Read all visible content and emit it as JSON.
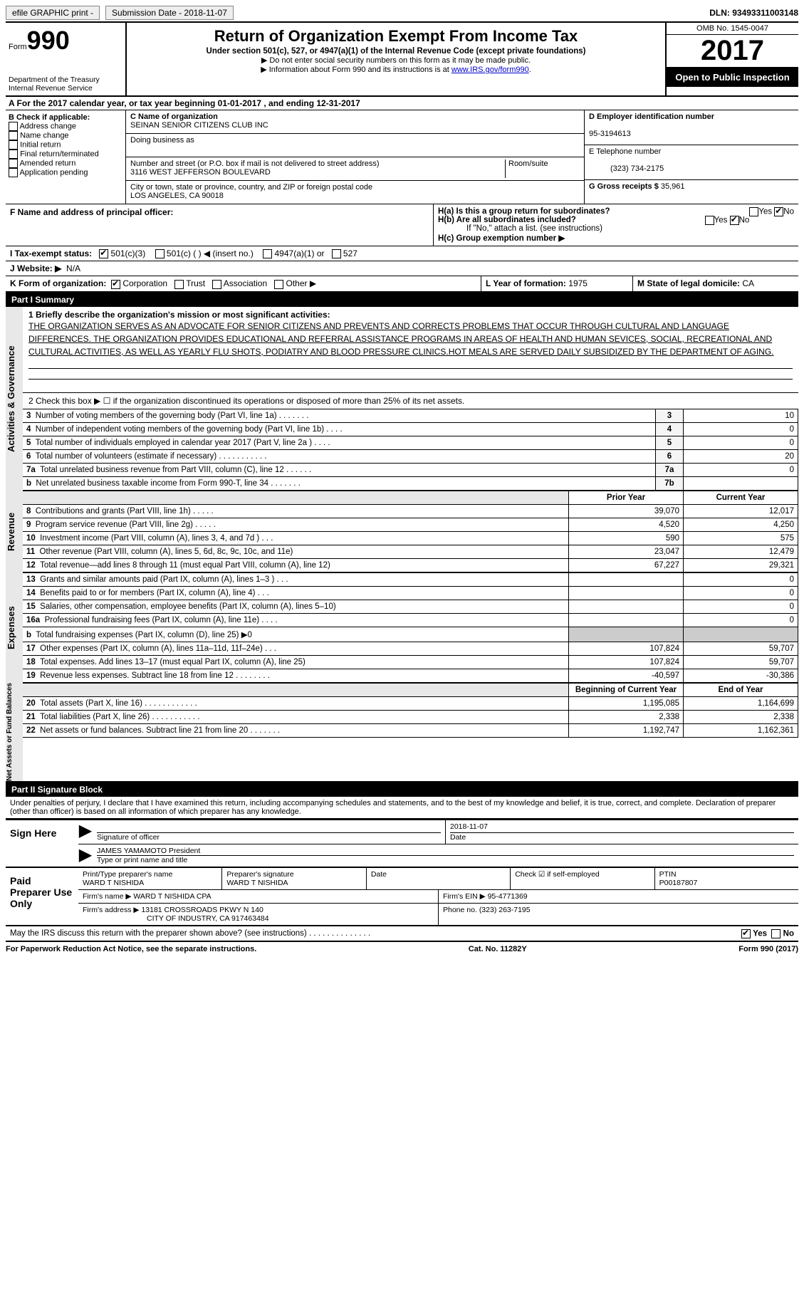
{
  "top": {
    "efile": "efile GRAPHIC print -",
    "submission": "Submission Date - 2018-11-07",
    "dln": "DLN: 93493311003148"
  },
  "header": {
    "form_prefix": "Form",
    "form_num": "990",
    "dept1": "Department of the Treasury",
    "dept2": "Internal Revenue Service",
    "title": "Return of Organization Exempt From Income Tax",
    "sub": "Under section 501(c), 527, or 4947(a)(1) of the Internal Revenue Code (except private foundations)",
    "note1": "▶ Do not enter social security numbers on this form as it may be made public.",
    "note2_pre": "▶ Information about Form 990 and its instructions is at ",
    "note2_link": "www.IRS.gov/form990",
    "omb": "OMB No. 1545-0047",
    "year": "2017",
    "inspection": "Open to Public Inspection"
  },
  "A": {
    "text": "A  For the 2017 calendar year, or tax year beginning 01-01-2017    , and ending 12-31-2017"
  },
  "B": {
    "label": "B Check if applicable:",
    "opts": [
      "Address change",
      "Name change",
      "Initial return",
      "Final return/terminated",
      "Amended return",
      "Application pending"
    ]
  },
  "C": {
    "name_label": "C Name of organization",
    "name": "SEINAN SENIOR CITIZENS CLUB INC",
    "dba_label": "Doing business as",
    "dba": "",
    "addr_label": "Number and street (or P.O. box if mail is not delivered to street address)",
    "addr": "3116 WEST JEFFERSON BOULEVARD",
    "room_label": "Room/suite",
    "city_label": "City or town, state or province, country, and ZIP or foreign postal code",
    "city": "LOS ANGELES, CA  90018"
  },
  "D": {
    "label": "D Employer identification number",
    "val": "95-3194613"
  },
  "E": {
    "label": "E Telephone number",
    "val": "(323) 734-2175"
  },
  "G": {
    "label": "G Gross receipts $",
    "val": "35,961"
  },
  "F": {
    "label": "F Name and address of principal officer:",
    "val": ""
  },
  "H": {
    "a": "H(a)  Is this a group return for subordinates?",
    "b": "H(b)  Are all subordinates included?",
    "note": "If \"No,\" attach a list. (see instructions)",
    "c": "H(c)  Group exemption number ▶"
  },
  "I": {
    "label": "I  Tax-exempt status:",
    "o1": "501(c)(3)",
    "o2": "501(c) (   ) ◀ (insert no.)",
    "o3": "4947(a)(1) or",
    "o4": "527"
  },
  "J": {
    "label": "J  Website: ▶",
    "val": "N/A"
  },
  "K": {
    "label": "K Form of organization:",
    "o1": "Corporation",
    "o2": "Trust",
    "o3": "Association",
    "o4": "Other ▶"
  },
  "L": {
    "label": "L Year of formation:",
    "val": "1975"
  },
  "M": {
    "label": "M State of legal domicile:",
    "val": "CA"
  },
  "partI": {
    "header": "Part I    Summary",
    "l1": "1  Briefly describe the organization's mission or most significant activities:",
    "mission": "THE ORGANIZATION SERVES AS AN ADVOCATE FOR SENIOR CITIZENS AND PREVENTS AND CORRECTS PROBLEMS THAT OCCUR THROUGH CULTURAL AND LANGUAGE DIFFERENCES. THE ORGANIZATION PROVIDES EDUCATIONAL AND REFERRAL ASSISTANCE PROGRAMS IN AREAS OF HEALTH AND HUMAN SEVICES, SOCIAL, RECREATIONAL AND CULTURAL ACTIVITIES, AS WELL AS YEARLY FLU SHOTS, PODIATRY AND BLOOD PRESSURE CLINICS.HOT MEALS ARE SERVED DAILY SUBSIDIZED BY THE DEPARTMENT OF AGING.",
    "l2": "2  Check this box ▶ ☐  if the organization discontinued its operations or disposed of more than 25% of its net assets.",
    "gov_side": "Activities & Governance",
    "rev_side": "Revenue",
    "exp_side": "Expenses",
    "na_side": "Net Assets or Fund Balances",
    "lines_gov": [
      {
        "n": "3",
        "t": "Number of voting members of the governing body (Part VI, line 1a)  .   .   .   .   .   .   .",
        "box": "3",
        "v": "10"
      },
      {
        "n": "4",
        "t": "Number of independent voting members of the governing body (Part VI, line 1b)   .   .   .   .",
        "box": "4",
        "v": "0"
      },
      {
        "n": "5",
        "t": "Total number of individuals employed in calendar year 2017 (Part V, line 2a )   .   .   .   .",
        "box": "5",
        "v": "0"
      },
      {
        "n": "6",
        "t": "Total number of volunteers (estimate if necessary)   .   .   .   .   .   .   .   .   .   .   .",
        "box": "6",
        "v": "20"
      },
      {
        "n": "7a",
        "t": "Total unrelated business revenue from Part VIII, column (C), line 12   .   .   .   .   .   .",
        "box": "7a",
        "v": "0"
      },
      {
        "n": "b",
        "t": "Net unrelated business taxable income from Form 990-T, line 34   .   .   .   .   .   .   .",
        "box": "7b",
        "v": ""
      }
    ],
    "col_prior": "Prior Year",
    "col_current": "Current Year",
    "lines_rev": [
      {
        "n": "8",
        "t": "Contributions and grants (Part VIII, line 1h)   .   .   .   .   .",
        "p": "39,070",
        "c": "12,017"
      },
      {
        "n": "9",
        "t": "Program service revenue (Part VIII, line 2g)   .   .   .   .   .",
        "p": "4,520",
        "c": "4,250"
      },
      {
        "n": "10",
        "t": "Investment income (Part VIII, column (A), lines 3, 4, and 7d )   .   .   .",
        "p": "590",
        "c": "575"
      },
      {
        "n": "11",
        "t": "Other revenue (Part VIII, column (A), lines 5, 6d, 8c, 9c, 10c, and 11e)",
        "p": "23,047",
        "c": "12,479"
      },
      {
        "n": "12",
        "t": "Total revenue—add lines 8 through 11 (must equal Part VIII, column (A), line 12)",
        "p": "67,227",
        "c": "29,321"
      }
    ],
    "lines_exp": [
      {
        "n": "13",
        "t": "Grants and similar amounts paid (Part IX, column (A), lines 1–3 )   .   .   .",
        "p": "",
        "c": "0"
      },
      {
        "n": "14",
        "t": "Benefits paid to or for members (Part IX, column (A), line 4)   .   .   .",
        "p": "",
        "c": "0"
      },
      {
        "n": "15",
        "t": "Salaries, other compensation, employee benefits (Part IX, column (A), lines 5–10)",
        "p": "",
        "c": "0"
      },
      {
        "n": "16a",
        "t": "Professional fundraising fees (Part IX, column (A), line 11e)   .   .   .   .",
        "p": "",
        "c": "0"
      },
      {
        "n": "b",
        "t": "Total fundraising expenses (Part IX, column (D), line 25) ▶0",
        "p": "—shade—",
        "c": "—shade—"
      },
      {
        "n": "17",
        "t": "Other expenses (Part IX, column (A), lines 11a–11d, 11f–24e)   .   .   .",
        "p": "107,824",
        "c": "59,707"
      },
      {
        "n": "18",
        "t": "Total expenses. Add lines 13–17 (must equal Part IX, column (A), line 25)",
        "p": "107,824",
        "c": "59,707"
      },
      {
        "n": "19",
        "t": "Revenue less expenses. Subtract line 18 from line 12 .   .   .   .   .   .   .   .",
        "p": "-40,597",
        "c": "-30,386"
      }
    ],
    "col_boy": "Beginning of Current Year",
    "col_eoy": "End of Year",
    "lines_na": [
      {
        "n": "20",
        "t": "Total assets (Part X, line 16)   .   .   .   .   .   .   .   .   .   .   .   .",
        "p": "1,195,085",
        "c": "1,164,699"
      },
      {
        "n": "21",
        "t": "Total liabilities (Part X, line 26)   .   .   .   .   .   .   .   .   .   .   .",
        "p": "2,338",
        "c": "2,338"
      },
      {
        "n": "22",
        "t": "Net assets or fund balances. Subtract line 21 from line 20 .   .   .   .   .   .   .",
        "p": "1,192,747",
        "c": "1,162,361"
      }
    ]
  },
  "partII": {
    "header": "Part II    Signature Block",
    "perjury": "Under penalties of perjury, I declare that I have examined this return, including accompanying schedules and statements, and to the best of my knowledge and belief, it is true, correct, and complete. Declaration of preparer (other than officer) is based on all information of which preparer has any knowledge.",
    "sign_here": "Sign Here",
    "sig_officer": "Signature of officer",
    "sig_date": "2018-11-07",
    "date_lbl": "Date",
    "name_title": "JAMES YAMAMOTO President",
    "type_name": "Type or print name and title",
    "paid": "Paid Preparer Use Only",
    "prep_name_lbl": "Print/Type preparer's name",
    "prep_name": "WARD T NISHIDA",
    "prep_sig_lbl": "Preparer's signature",
    "prep_sig": "WARD T NISHIDA",
    "prep_date_lbl": "Date",
    "self_emp": "Check ☑ if self-employed",
    "ptin_lbl": "PTIN",
    "ptin": "P00187807",
    "firm_name_lbl": "Firm's name    ▶",
    "firm_name": "WARD T NISHIDA CPA",
    "firm_ein_lbl": "Firm's EIN ▶",
    "firm_ein": "95-4771369",
    "firm_addr_lbl": "Firm's address ▶",
    "firm_addr1": "13181 CROSSROADS PKWY N 140",
    "firm_addr2": "CITY OF INDUSTRY, CA  917463484",
    "phone_lbl": "Phone no.",
    "phone": "(323) 263-7195",
    "discuss": "May the IRS discuss this return with the preparer shown above? (see instructions)   .   .   .   .   .   .   .   .   .   .   .   .   .   .",
    "yes": "Yes",
    "no": "No"
  },
  "footer": {
    "left": "For Paperwork Reduction Act Notice, see the separate instructions.",
    "mid": "Cat. No. 11282Y",
    "right": "Form 990 (2017)"
  }
}
